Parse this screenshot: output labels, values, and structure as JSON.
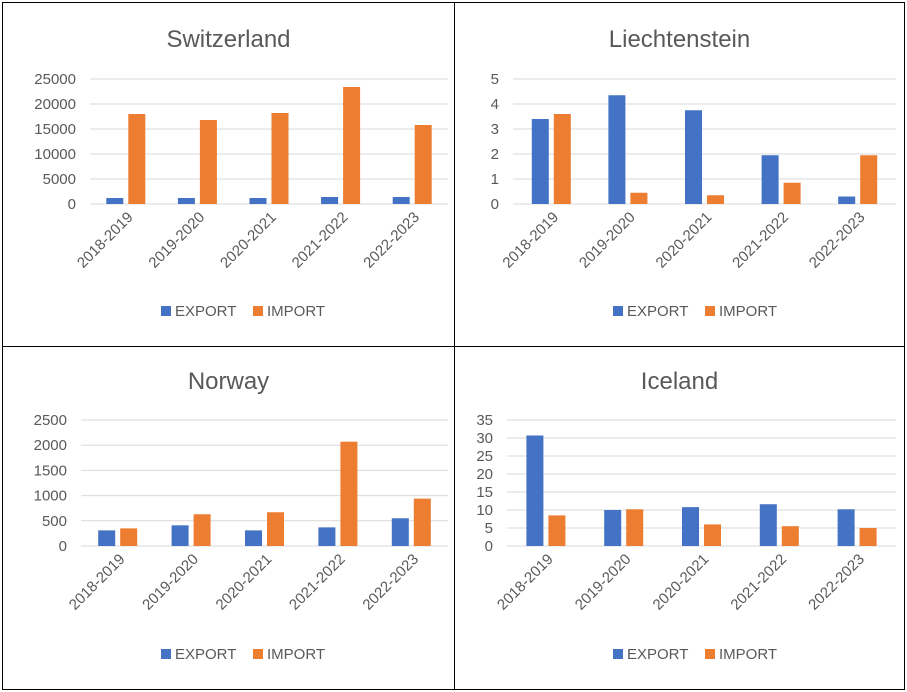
{
  "colors": {
    "export": "#4472c4",
    "import": "#ed7d31"
  },
  "legend": {
    "export_label": "EXPORT",
    "import_label": "IMPORT"
  },
  "chart_data": [
    {
      "type": "bar",
      "title": "Switzerland",
      "categories": [
        "2018-2019",
        "2019-2020",
        "2020-2021",
        "2021-2022",
        "2022-2023"
      ],
      "series": [
        {
          "name": "EXPORT",
          "values": [
            1200,
            1200,
            1200,
            1400,
            1400
          ]
        },
        {
          "name": "IMPORT",
          "values": [
            18000,
            16800,
            18200,
            23400,
            15800
          ]
        }
      ],
      "ylim": [
        0,
        25000
      ],
      "yticks": [
        0,
        5000,
        10000,
        15000,
        20000,
        25000
      ],
      "grid": true,
      "legend_position": "bottom"
    },
    {
      "type": "bar",
      "title": "Liechtenstein",
      "categories": [
        "2018-2019",
        "2019-2020",
        "2020-2021",
        "2021-2022",
        "2022-2023"
      ],
      "series": [
        {
          "name": "EXPORT",
          "values": [
            3.4,
            4.35,
            3.75,
            1.95,
            0.3
          ]
        },
        {
          "name": "IMPORT",
          "values": [
            3.6,
            0.45,
            0.35,
            0.85,
            1.95
          ]
        }
      ],
      "ylim": [
        0,
        5
      ],
      "yticks": [
        0,
        1,
        2,
        3,
        4,
        5
      ],
      "grid": true,
      "legend_position": "bottom"
    },
    {
      "type": "bar",
      "title": "Norway",
      "categories": [
        "2018-2019",
        "2019-2020",
        "2020-2021",
        "2021-2022",
        "2022-2023"
      ],
      "series": [
        {
          "name": "EXPORT",
          "values": [
            310,
            410,
            310,
            370,
            550
          ]
        },
        {
          "name": "IMPORT",
          "values": [
            350,
            630,
            670,
            2070,
            940
          ]
        }
      ],
      "ylim": [
        0,
        2500
      ],
      "yticks": [
        0,
        500,
        1000,
        1500,
        2000,
        2500
      ],
      "grid": true,
      "legend_position": "bottom"
    },
    {
      "type": "bar",
      "title": "Iceland",
      "categories": [
        "2018-2019",
        "2019-2020",
        "2020-2021",
        "2021-2022",
        "2022-2023"
      ],
      "series": [
        {
          "name": "EXPORT",
          "values": [
            30.7,
            10,
            10.8,
            11.6,
            10.2
          ]
        },
        {
          "name": "IMPORT",
          "values": [
            8.5,
            10.2,
            6,
            5.5,
            5
          ]
        }
      ],
      "ylim": [
        0,
        35
      ],
      "yticks": [
        0,
        5,
        10,
        15,
        20,
        25,
        30,
        35
      ],
      "grid": true,
      "legend_position": "bottom"
    }
  ]
}
